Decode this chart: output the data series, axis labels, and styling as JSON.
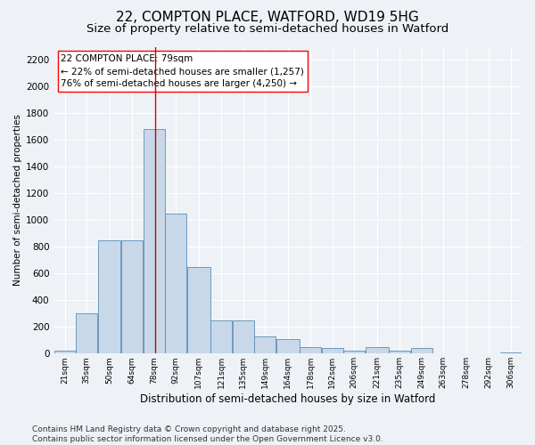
{
  "title_line1": "22, COMPTON PLACE, WATFORD, WD19 5HG",
  "title_line2": "Size of property relative to semi-detached houses in Watford",
  "xlabel": "Distribution of semi-detached houses by size in Watford",
  "ylabel": "Number of semi-detached properties",
  "annotation_title": "22 COMPTON PLACE: 79sqm",
  "annotation_line2": "← 22% of semi-detached houses are smaller (1,257)",
  "annotation_line3": "76% of semi-detached houses are larger (4,250) →",
  "footer_line1": "Contains HM Land Registry data © Crown copyright and database right 2025.",
  "footer_line2": "Contains public sector information licensed under the Open Government Licence v3.0.",
  "bar_color": "#c8d8e8",
  "bar_edge_color": "#5b8db8",
  "background_color": "#eef2f7",
  "grid_color": "#ffffff",
  "vline_value": 79,
  "vline_color": "#cc0000",
  "categories": [
    "21sqm",
    "35sqm",
    "50sqm",
    "64sqm",
    "78sqm",
    "92sqm",
    "107sqm",
    "121sqm",
    "135sqm",
    "149sqm",
    "164sqm",
    "178sqm",
    "192sqm",
    "206sqm",
    "221sqm",
    "235sqm",
    "249sqm",
    "263sqm",
    "278sqm",
    "292sqm",
    "306sqm"
  ],
  "bin_edges": [
    14,
    28,
    42,
    57,
    71,
    85,
    99,
    114,
    128,
    142,
    156,
    171,
    185,
    199,
    213,
    228,
    242,
    256,
    270,
    285,
    299,
    313
  ],
  "bar_heights": [
    20,
    300,
    850,
    850,
    1680,
    1050,
    650,
    250,
    250,
    130,
    110,
    50,
    40,
    20,
    50,
    20,
    40,
    0,
    0,
    0,
    10
  ],
  "ylim": [
    0,
    2300
  ],
  "yticks": [
    0,
    200,
    400,
    600,
    800,
    1000,
    1200,
    1400,
    1600,
    1800,
    2000,
    2200
  ],
  "title_fontsize": 11,
  "subtitle_fontsize": 9.5,
  "ylabel_fontsize": 7.5,
  "xlabel_fontsize": 8.5,
  "annotation_fontsize": 7.5,
  "footer_fontsize": 6.5,
  "ytick_fontsize": 7.5,
  "xtick_fontsize": 6.5
}
